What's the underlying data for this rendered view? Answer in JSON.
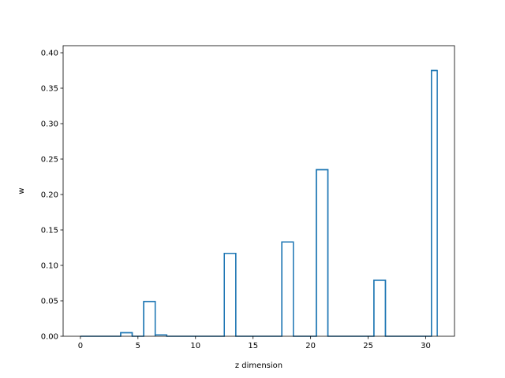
{
  "chart_data": {
    "type": "bar",
    "style": "step-outline",
    "xlabel": "z dimension",
    "ylabel": "w",
    "xlim": [
      -1.5,
      32.5
    ],
    "ylim": [
      0,
      0.41
    ],
    "xticks": [
      0,
      5,
      10,
      15,
      20,
      25,
      30
    ],
    "xtick_labels": [
      "0",
      "5",
      "10",
      "15",
      "20",
      "25",
      "30"
    ],
    "yticks": [
      0.0,
      0.05,
      0.1,
      0.15,
      0.2,
      0.25,
      0.3,
      0.35,
      0.4
    ],
    "ytick_labels": [
      "0.00",
      "0.05",
      "0.10",
      "0.15",
      "0.20",
      "0.25",
      "0.30",
      "0.35",
      "0.40"
    ],
    "x": [
      0,
      1,
      2,
      3,
      4,
      5,
      6,
      7,
      8,
      9,
      10,
      11,
      12,
      13,
      14,
      15,
      16,
      17,
      18,
      19,
      20,
      21,
      22,
      23,
      24,
      25,
      26,
      27,
      28,
      29,
      30,
      31
    ],
    "values": [
      0,
      0,
      0,
      0,
      0.005,
      0,
      0.049,
      0.002,
      0,
      0,
      0,
      0,
      0,
      0.117,
      0,
      0,
      0,
      0,
      0.133,
      0,
      0,
      0.235,
      0,
      0,
      0,
      0,
      0.079,
      0,
      0,
      0,
      0,
      0.375
    ],
    "grid": false,
    "line_color": "#1f77b4"
  }
}
